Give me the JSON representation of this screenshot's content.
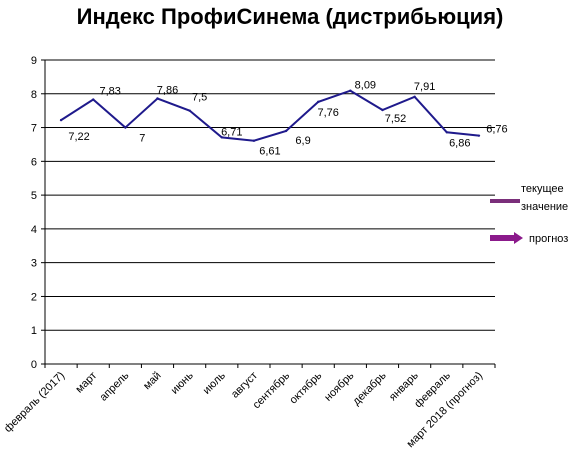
{
  "chart_data": {
    "type": "line",
    "title": "Индекс ПрофиСинема (дистрибьюция)",
    "categories": [
      "февраль (2017)",
      "март",
      "апрель",
      "май",
      "июнь",
      "июль",
      "август",
      "сентябрь",
      "октябрь",
      "ноябрь",
      "декабрь",
      "январь",
      "февраль",
      "март 2018 (прогноз)"
    ],
    "series": [
      {
        "values": [
          7.22,
          7.83,
          7,
          7.86,
          7.5,
          6.71,
          6.61,
          6.9,
          7.76,
          8.09,
          7.52,
          7.91,
          6.86,
          6.76
        ],
        "labels": [
          "7,22",
          "7,83",
          "7",
          "7,86",
          "7,5",
          "6,71",
          "6,61",
          "6,9",
          "7,76",
          "8,09",
          "7,52",
          "7,91",
          "6,86",
          "6,76"
        ]
      }
    ],
    "ylim": [
      0,
      9
    ],
    "yticks": [
      "0",
      "1",
      "2",
      "3",
      "4",
      "5",
      "6",
      "7",
      "8",
      "9"
    ],
    "grid": "horizontal",
    "line_color": "#1f1a8c",
    "legend": {
      "placement": "right",
      "items": [
        {
          "lines": [
            "текущее",
            "значение"
          ],
          "color": "#7a2f7a"
        },
        {
          "lines": [
            "прогноз"
          ],
          "color": "#8b1a8b"
        }
      ]
    }
  }
}
